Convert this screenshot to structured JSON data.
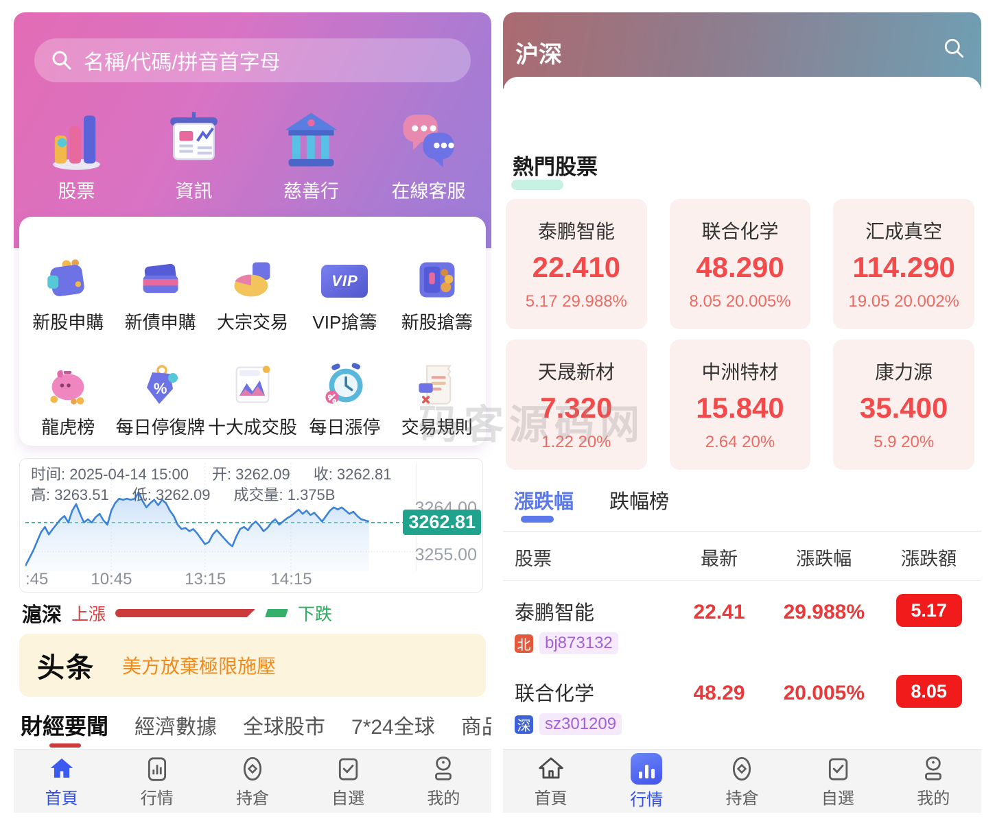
{
  "tabbar": {
    "items": [
      "首頁",
      "行情",
      "持倉",
      "自選",
      "我的"
    ]
  },
  "watermark": "码客源码网",
  "left": {
    "search_placeholder": "名稱/代碼/拼音首字母",
    "shortcuts": [
      {
        "label": "股票"
      },
      {
        "label": "資訊"
      },
      {
        "label": "慈善行"
      },
      {
        "label": "在線客服"
      }
    ],
    "quick": [
      {
        "label": "新股申購"
      },
      {
        "label": "新債申購"
      },
      {
        "label": "大宗交易"
      },
      {
        "label": "VIP搶籌"
      },
      {
        "label": "新股搶籌"
      },
      {
        "label": "龍虎榜"
      },
      {
        "label": "每日停復牌"
      },
      {
        "label": "十大成交股"
      },
      {
        "label": "每日漲停"
      },
      {
        "label": "交易規則"
      }
    ],
    "glyphs": {
      "vip": "VIP",
      "percent": "%"
    },
    "chart": {
      "info_time": "时间: 2025-04-14 15:00",
      "info_open": "开: 3262.09",
      "info_close": "收: 3262.81",
      "info_high": "高: 3263.51",
      "info_low": "低: 3262.09",
      "info_vol": "成交量: 1.375B",
      "y_top": "3264.00",
      "y_badge": "3262.81",
      "y_bottom": "3255.00",
      "x0": ":45",
      "x1": "10:45",
      "x2": "13:15",
      "x3": "14:15"
    },
    "updown": {
      "market": "滬深",
      "up": "上漲",
      "down": "下跌"
    },
    "headline": {
      "logo": "头条",
      "text": "美方放棄極限施壓"
    },
    "news_tabs": [
      {
        "label": "財經要聞"
      },
      {
        "label": "經濟數據"
      },
      {
        "label": "全球股市"
      },
      {
        "label": "7*24全球"
      },
      {
        "label": "商品資訊"
      }
    ]
  },
  "right": {
    "title": "沪深",
    "section_title": "熱門股票",
    "hot_stocks": [
      {
        "name": "泰鹏智能",
        "price": "22.410",
        "change": "5.17 29.988%"
      },
      {
        "name": "联合化学",
        "price": "48.290",
        "change": "8.05 20.005%"
      },
      {
        "name": "汇成真空",
        "price": "114.290",
        "change": "19.05 20.002%"
      },
      {
        "name": "天晟新材",
        "price": "7.320",
        "change": "1.22 20%"
      },
      {
        "name": "中洲特材",
        "price": "15.840",
        "change": "2.64 20%"
      },
      {
        "name": "康力源",
        "price": "35.400",
        "change": "5.9 20%"
      }
    ],
    "rank_tabs": [
      {
        "label": "漲跌幅"
      },
      {
        "label": "跌幅榜"
      }
    ],
    "cols": [
      "股票",
      "最新",
      "漲跌幅",
      "漲跌額"
    ],
    "rows": [
      {
        "name": "泰鹏智能",
        "ex": "北",
        "code": "bj873132",
        "price": "22.41",
        "pct": "29.988%",
        "amt": "5.17"
      },
      {
        "name": "联合化学",
        "ex": "深",
        "code": "sz301209",
        "price": "48.29",
        "pct": "20.005%",
        "amt": "8.05"
      }
    ]
  },
  "chart_data": {
    "type": "line",
    "title": "滬深 intraday",
    "overlay": {
      "time": "2025-04-14 15:00",
      "open": 3262.09,
      "close": 3262.81,
      "high": 3263.51,
      "low": 3262.09,
      "volume": "1.375B"
    },
    "x_ticks": [
      ":45",
      "10:45",
      "13:15",
      "14:15"
    ],
    "y_ticks": [
      3264.0,
      3262.81,
      3255.0
    ],
    "close_line_value": 3262.81,
    "legend": "none",
    "grid": "dashed",
    "series": [
      {
        "name": "price_pct_of_plot",
        "points_pct": [
          [
            0,
            95
          ],
          [
            2,
            81
          ],
          [
            4,
            64
          ],
          [
            5,
            59
          ],
          [
            6,
            66
          ],
          [
            7,
            61
          ],
          [
            9,
            52
          ],
          [
            10,
            49
          ],
          [
            11,
            55
          ],
          [
            12,
            44
          ],
          [
            13,
            38
          ],
          [
            14,
            47
          ],
          [
            15,
            55
          ],
          [
            16,
            52
          ],
          [
            17,
            55
          ],
          [
            18,
            50
          ],
          [
            19,
            47
          ],
          [
            20,
            53
          ],
          [
            21,
            57
          ],
          [
            22,
            44
          ],
          [
            23,
            37
          ],
          [
            24,
            33
          ],
          [
            25,
            34
          ],
          [
            26,
            33
          ],
          [
            27,
            34
          ],
          [
            28,
            33
          ],
          [
            29,
            27
          ],
          [
            30,
            35
          ],
          [
            31,
            41
          ],
          [
            32,
            37
          ],
          [
            33,
            34
          ],
          [
            34,
            39
          ],
          [
            35,
            34
          ],
          [
            36,
            37
          ],
          [
            37,
            44
          ],
          [
            38,
            49
          ],
          [
            39,
            57
          ],
          [
            40,
            61
          ],
          [
            41,
            60
          ],
          [
            42,
            63
          ],
          [
            43,
            61
          ],
          [
            44,
            65
          ],
          [
            45,
            70
          ],
          [
            46,
            75
          ],
          [
            47,
            73
          ],
          [
            48,
            66
          ],
          [
            49,
            62
          ],
          [
            50,
            66
          ],
          [
            51,
            70
          ],
          [
            52,
            74
          ],
          [
            53,
            77
          ],
          [
            54,
            68
          ],
          [
            55,
            61
          ],
          [
            56,
            59
          ],
          [
            57,
            62
          ],
          [
            58,
            57
          ],
          [
            59,
            54
          ],
          [
            60,
            58
          ],
          [
            61,
            63
          ],
          [
            62,
            60
          ],
          [
            63,
            55
          ],
          [
            64,
            52
          ],
          [
            65,
            57
          ],
          [
            66,
            54
          ],
          [
            67,
            51
          ],
          [
            68,
            49
          ],
          [
            69,
            46
          ],
          [
            70,
            43
          ],
          [
            71,
            47
          ],
          [
            72,
            44
          ],
          [
            73,
            48
          ],
          [
            74,
            46
          ],
          [
            75,
            50
          ],
          [
            76,
            54
          ],
          [
            77,
            49
          ],
          [
            78,
            44
          ],
          [
            79,
            41
          ],
          [
            80,
            43
          ],
          [
            81,
            41
          ],
          [
            82,
            44
          ],
          [
            83,
            47
          ],
          [
            84,
            45
          ],
          [
            85,
            49
          ],
          [
            86,
            52
          ],
          [
            87,
            53
          ],
          [
            88,
            54
          ]
        ]
      }
    ]
  }
}
